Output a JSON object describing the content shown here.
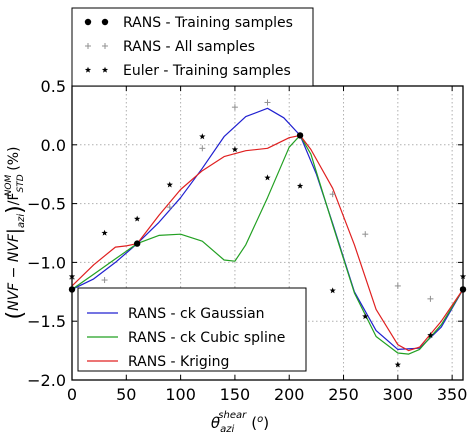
{
  "chart_data": {
    "type": "line",
    "xlabel": "θ azi shear (°)",
    "ylabel": "(NVF − NVF|azi) / F STD NOM (%)",
    "xlim": [
      0,
      360
    ],
    "ylim": [
      -2.0,
      0.5
    ],
    "x_ticks": [
      "0",
      "50",
      "100",
      "150",
      "200",
      "250",
      "300",
      "350"
    ],
    "y_ticks": [
      "−2.0",
      "−1.5",
      "−1.0",
      "−0.5",
      "0.0",
      "0.5"
    ],
    "grid": true,
    "legend_top": {
      "placement": "top",
      "entries": [
        "RANS - Training samples",
        "RANS - All samples",
        "Euler - Training samples"
      ]
    },
    "legend_bottom": {
      "placement": "lower-left",
      "entries": [
        "RANS - ck Gaussian",
        "RANS - ck Cubic spline",
        "RANS - Kriging"
      ]
    },
    "colors": {
      "gaussian": "#2020d0",
      "cubic": "#22a022",
      "kriging": "#e02020",
      "all_samples": "#909090",
      "points": "#000000"
    },
    "markers": {
      "rans_training": {
        "style": "dot",
        "x": [
          0,
          60,
          210,
          360
        ],
        "y": [
          -1.23,
          -0.84,
          0.08,
          -1.23
        ]
      },
      "rans_all": {
        "style": "plus",
        "x": [
          0,
          30,
          60,
          90,
          120,
          150,
          180,
          210,
          240,
          270,
          300,
          330,
          360
        ],
        "y": [
          -1.14,
          -1.15,
          -0.84,
          -0.53,
          -0.03,
          0.32,
          0.36,
          0.08,
          -0.42,
          -0.76,
          -1.2,
          -1.31,
          -1.23
        ]
      },
      "euler_training": {
        "style": "star",
        "x": [
          0,
          30,
          60,
          90,
          120,
          150,
          180,
          210,
          240,
          270,
          300,
          330,
          360
        ],
        "y": [
          -1.12,
          -0.75,
          -0.63,
          -0.34,
          0.07,
          -0.04,
          -0.28,
          -0.35,
          -1.24,
          -1.46,
          -1.87,
          -1.62,
          -1.12
        ]
      }
    },
    "series": [
      {
        "name": "RANS - ck Gaussian",
        "x": [
          0,
          20,
          40,
          60,
          80,
          100,
          120,
          140,
          160,
          180,
          195,
          210,
          225,
          240,
          260,
          280,
          300,
          320,
          340,
          360
        ],
        "y": [
          -1.23,
          -1.14,
          -1.0,
          -0.84,
          -0.66,
          -0.45,
          -0.2,
          0.07,
          0.24,
          0.31,
          0.23,
          0.08,
          -0.25,
          -0.67,
          -1.25,
          -1.58,
          -1.74,
          -1.73,
          -1.55,
          -1.23
        ]
      },
      {
        "name": "RANS - ck Cubic spline",
        "x": [
          0,
          20,
          40,
          60,
          80,
          100,
          120,
          140,
          150,
          160,
          180,
          200,
          210,
          220,
          240,
          260,
          280,
          300,
          310,
          320,
          340,
          360
        ],
        "y": [
          -1.23,
          -1.1,
          -0.97,
          -0.84,
          -0.77,
          -0.76,
          -0.82,
          -0.98,
          -0.99,
          -0.85,
          -0.45,
          -0.02,
          0.08,
          -0.08,
          -0.68,
          -1.26,
          -1.63,
          -1.77,
          -1.78,
          -1.74,
          -1.53,
          -1.23
        ]
      },
      {
        "name": "RANS - Kriging",
        "x": [
          0,
          20,
          40,
          50,
          60,
          80,
          100,
          120,
          140,
          160,
          180,
          200,
          210,
          220,
          240,
          260,
          280,
          300,
          310,
          320,
          340,
          360
        ],
        "y": [
          -1.2,
          -1.02,
          -0.87,
          -0.86,
          -0.84,
          -0.6,
          -0.38,
          -0.22,
          -0.1,
          -0.05,
          -0.03,
          0.06,
          0.08,
          -0.04,
          -0.37,
          -0.85,
          -1.4,
          -1.7,
          -1.75,
          -1.72,
          -1.5,
          -1.23
        ]
      }
    ]
  }
}
